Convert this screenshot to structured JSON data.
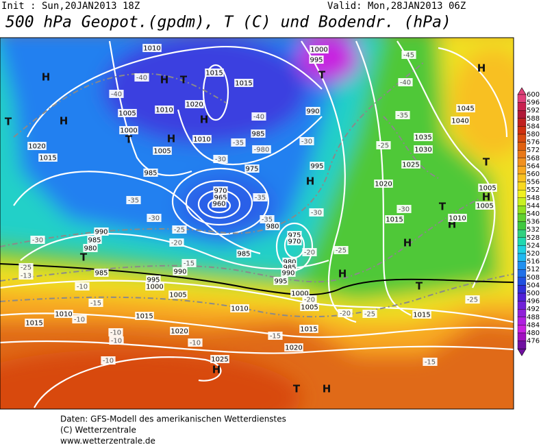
{
  "header": {
    "init": "Init : Sun,20JAN2013 18Z",
    "valid": "Valid: Mon,28JAN2013 06Z",
    "title": "500 hPa Geopot.(gpdm), T (C) und Bodendr. (hPa)"
  },
  "footer": [
    "Daten: GFS-Modell des amerikanischen Wetterdienstes",
    "(C) Wetterzentrale",
    "www.wetterzentrale.de"
  ],
  "legend": {
    "levels": [
      600,
      596,
      592,
      588,
      584,
      580,
      576,
      572,
      568,
      564,
      560,
      556,
      552,
      548,
      544,
      540,
      536,
      532,
      528,
      524,
      520,
      516,
      512,
      508,
      504,
      500,
      496,
      492,
      488,
      484,
      480,
      476
    ],
    "colors": [
      "#e0407a",
      "#c8204f",
      "#b01838",
      "#c02020",
      "#d03010",
      "#d84a10",
      "#e06010",
      "#e87818",
      "#f09020",
      "#f8a820",
      "#f8c020",
      "#f8d820",
      "#f0f020",
      "#c8f020",
      "#90e020",
      "#60d030",
      "#40c840",
      "#30d080",
      "#20d8b0",
      "#20d0e0",
      "#20b8f0",
      "#2090f0",
      "#2070e8",
      "#2050e0",
      "#3030d8",
      "#5020d8",
      "#7020d8",
      "#9020d8",
      "#b020e0",
      "#c820e0",
      "#a010c0",
      "#7010a0"
    ]
  },
  "map_labels": [
    "1010",
    "1000",
    "995",
    "-45",
    "H",
    "H",
    "-40",
    "H",
    "T",
    "1015",
    "1015",
    "T",
    "-40",
    "-40",
    "1020",
    "1005",
    "1010",
    "T",
    "H",
    "H",
    "-40",
    "990",
    "-35",
    "1045",
    "1040",
    "1000",
    "T",
    "1005",
    "H",
    "985",
    "1010",
    "-35",
    "-980",
    "1035",
    "1030",
    "1020",
    "1015",
    "-30",
    "975",
    "-30",
    "995",
    "-25",
    "1025",
    "985",
    "H",
    "1020",
    "970",
    "965",
    "960",
    "-35",
    "-35",
    "T",
    "1005",
    "H",
    "1005",
    "-30",
    "T",
    "H",
    "-30",
    "-35",
    "980",
    "-30",
    "1015",
    "1010",
    "990",
    "985",
    "980",
    "-25",
    "-30",
    "975",
    "970",
    "-20",
    "H",
    "T",
    "985",
    "-25",
    "-20",
    "-15",
    "980",
    "985",
    "990",
    "-25",
    "-13",
    "985",
    "990",
    "995",
    "1000",
    "995",
    "H",
    "T",
    "1005",
    "-10",
    "1000",
    "-20",
    "1005",
    "1010",
    "-20",
    "-25",
    "-25",
    "1015",
    "-15",
    "1010",
    "1015",
    "1015",
    "-10",
    "-10",
    "1020",
    "1015",
    "-15",
    "1020",
    "-10",
    "-10",
    "-15",
    "-10",
    "1025",
    "H",
    "T",
    "H"
  ]
}
